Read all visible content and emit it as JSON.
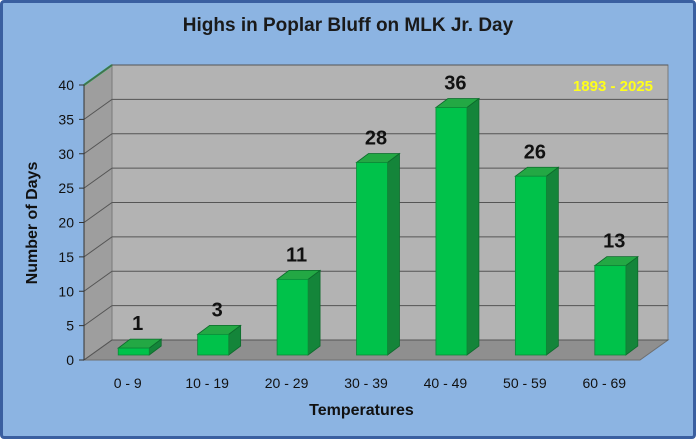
{
  "chart_data": {
    "type": "bar",
    "title": "Highs in Poplar Bluff on MLK Jr. Day",
    "xlabel": "Temperatures",
    "ylabel": "Number of Days",
    "annotation": "1893 - 2025",
    "categories": [
      "0 - 9",
      "10 - 19",
      "20 - 29",
      "30 - 39",
      "40 - 49",
      "50 - 59",
      "60 - 69"
    ],
    "values": [
      1,
      3,
      11,
      28,
      36,
      26,
      13
    ],
    "ylim": [
      0,
      40
    ],
    "yticks": [
      0,
      5,
      10,
      15,
      20,
      25,
      30,
      35,
      40
    ],
    "grid": true,
    "legend": "none",
    "colors": {
      "background": "#8cb4e2",
      "plot_wall": "#b3b3b3",
      "bar_front": "#00c24a",
      "bar_top": "#23a844",
      "bar_side": "#14853a",
      "annotation": "#ffff1a"
    }
  }
}
